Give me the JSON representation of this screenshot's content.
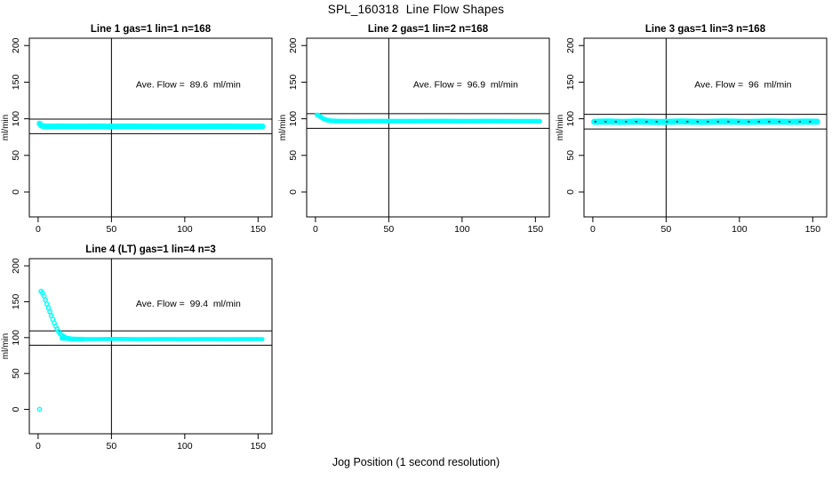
{
  "page": {
    "title": "SPL_160318  Line Flow Shapes",
    "xlabel": "Jog Position (1 second resolution)",
    "background": "#ffffff",
    "marker_color": "#00ffff",
    "line_color": "#000000"
  },
  "chart_data": [
    {
      "type": "scatter",
      "title": "Line 1 gas=1 lin=1 n=168",
      "row": 0,
      "col": 0,
      "ylabel": "ml/min",
      "annotation": "Ave. Flow =  89.6  ml/min",
      "ave_flow": 89.6,
      "xticks": [
        0,
        50,
        100,
        150
      ],
      "yticks": [
        0,
        50,
        100,
        150,
        200
      ],
      "xlim": [
        -6,
        159.5
      ],
      "ylim": [
        -34,
        210
      ],
      "vline_x": 50,
      "ref_lines": [
        79.6,
        99.6
      ],
      "marker_color": "#00ffff",
      "band": {
        "spread": 2.6,
        "points": [
          [
            1,
            93.5
          ],
          [
            2,
            91.0
          ],
          [
            3,
            90.0
          ],
          [
            6,
            89.6
          ],
          [
            15,
            89.7
          ],
          [
            25,
            89.4
          ],
          [
            35,
            89.7
          ],
          [
            50,
            89.5
          ],
          [
            65,
            89.7
          ],
          [
            80,
            89.5
          ],
          [
            95,
            89.6
          ],
          [
            110,
            89.5
          ],
          [
            125,
            89.7
          ],
          [
            140,
            89.5
          ],
          [
            153,
            89.6
          ]
        ]
      },
      "markers": []
    },
    {
      "type": "scatter",
      "title": "Line 2 gas=1 lin=2 n=168",
      "row": 0,
      "col": 1,
      "ylabel": "ml/min",
      "annotation": "Ave. Flow =  96.9  ml/min",
      "ave_flow": 96.9,
      "xticks": [
        0,
        50,
        100,
        150
      ],
      "yticks": [
        0,
        50,
        100,
        150,
        200
      ],
      "xlim": [
        -6,
        159.5
      ],
      "ylim": [
        -34,
        210
      ],
      "vline_x": 50,
      "ref_lines": [
        86.9,
        106.9
      ],
      "marker_color": "#00ffff",
      "band": {
        "spread": 1.8,
        "points": [
          [
            1,
            105.3
          ],
          [
            2,
            104.6
          ],
          [
            3,
            103.2
          ],
          [
            4,
            101.8
          ],
          [
            5,
            100.6
          ],
          [
            6,
            99.6
          ],
          [
            7,
            98.8
          ],
          [
            8,
            98.2
          ],
          [
            10,
            97.4
          ],
          [
            12,
            97.1
          ],
          [
            15,
            96.9
          ],
          [
            25,
            96.8
          ],
          [
            40,
            96.9
          ],
          [
            60,
            96.8
          ],
          [
            80,
            96.9
          ],
          [
            100,
            96.8
          ],
          [
            120,
            96.9
          ],
          [
            140,
            96.8
          ],
          [
            153,
            96.8
          ]
        ]
      },
      "markers": []
    },
    {
      "type": "scatter",
      "title": "Line 3 gas=1 lin=3 n=168",
      "row": 0,
      "col": 2,
      "ylabel": "ml/min",
      "annotation": "Ave. Flow =  96  ml/min",
      "ave_flow": 96,
      "xticks": [
        0,
        50,
        100,
        150
      ],
      "yticks": [
        0,
        50,
        100,
        150,
        200
      ],
      "xlim": [
        -6,
        159.5
      ],
      "ylim": [
        -34,
        210
      ],
      "vline_x": 50,
      "ref_lines": [
        86,
        106
      ],
      "mean_line": {
        "value": 96,
        "visible": true
      },
      "marker_color": "#00ffff",
      "band": {
        "spread": 2.8,
        "points": [
          [
            1,
            95.9
          ],
          [
            10,
            96.3
          ],
          [
            20,
            95.8
          ],
          [
            30,
            96.2
          ],
          [
            45,
            95.7
          ],
          [
            60,
            96.2
          ],
          [
            75,
            95.8
          ],
          [
            90,
            96.3
          ],
          [
            105,
            95.8
          ],
          [
            120,
            96.2
          ],
          [
            135,
            95.9
          ],
          [
            145,
            96.1
          ],
          [
            153,
            96.0
          ]
        ]
      },
      "markers": []
    },
    {
      "type": "scatter",
      "title": "Line 4 (LT) gas=1 lin=4 n=3",
      "row": 1,
      "col": 0,
      "ylabel": "ml/min",
      "annotation": "Ave. Flow =  99.4  ml/min",
      "ave_flow": 99.4,
      "xticks": [
        0,
        50,
        100,
        150
      ],
      "yticks": [
        0,
        50,
        100,
        150,
        200
      ],
      "xlim": [
        -6,
        159.5
      ],
      "ylim": [
        -34,
        210
      ],
      "vline_x": 50,
      "ref_lines": [
        89.4,
        109.4
      ],
      "marker_color": "#00ffff",
      "band": {
        "spread": 1.5,
        "points": [
          [
            16,
            98.8
          ],
          [
            20,
            98.3
          ],
          [
            25,
            98.0
          ],
          [
            40,
            97.9
          ],
          [
            55,
            98.1
          ],
          [
            70,
            97.8
          ],
          [
            85,
            98.0
          ],
          [
            100,
            97.8
          ],
          [
            115,
            98.0
          ],
          [
            130,
            97.8
          ],
          [
            142,
            98.0
          ],
          [
            153,
            97.9
          ]
        ]
      },
      "markers": [
        [
          1,
          0
        ],
        [
          2,
          164.5
        ],
        [
          3,
          162.5
        ],
        [
          4,
          158
        ],
        [
          5,
          152.5
        ],
        [
          6,
          147
        ],
        [
          7,
          141.5
        ],
        [
          8,
          136
        ],
        [
          9,
          130.5
        ],
        [
          10,
          125.5
        ],
        [
          11,
          120.5
        ],
        [
          12,
          116
        ],
        [
          13,
          112
        ],
        [
          14,
          108.5
        ],
        [
          15,
          105.5
        ],
        [
          16,
          103.5
        ],
        [
          17,
          102
        ],
        [
          18,
          100.8
        ],
        [
          19,
          99.8
        ],
        [
          20,
          99
        ],
        [
          21,
          98.6
        ],
        [
          22,
          98.3
        ],
        [
          24,
          98
        ],
        [
          26,
          97.9
        ],
        [
          28,
          97.8
        ],
        [
          30,
          97.8
        ]
      ]
    }
  ]
}
